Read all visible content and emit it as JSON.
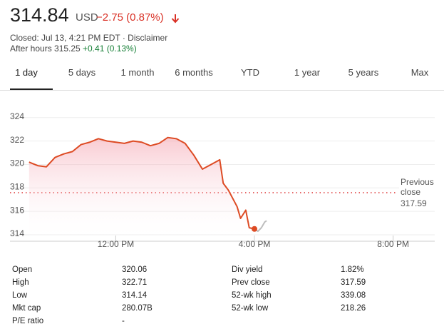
{
  "header": {
    "price": "314.84",
    "currency": "USD",
    "change": "−2.75 (0.87%)",
    "status": "Closed: Jul 13, 4:21 PM EDT · Disclaimer",
    "after_hours": "After hours 315.25",
    "after_hours_change": "+0.41 (0.13%)"
  },
  "tabs": {
    "items": [
      "1 day",
      "5 days",
      "1 month",
      "6 months",
      "YTD",
      "1 year",
      "5 years",
      "Max"
    ],
    "selected": 0
  },
  "chart_data": {
    "type": "line",
    "xlim": [
      8.95,
      21.2
    ],
    "ylim": [
      313.45,
      324.9
    ],
    "xticks": [
      {
        "value": 12,
        "label": "12:00 PM"
      },
      {
        "value": 16,
        "label": "4:00 PM"
      },
      {
        "value": 20,
        "label": "8:00 PM"
      }
    ],
    "yticks": [
      314,
      316,
      318,
      320,
      322,
      324
    ],
    "grid": true,
    "series": [
      {
        "color": "#dd4b24",
        "x": [
          9.5,
          9.75,
          10,
          10.25,
          10.5,
          10.75,
          11,
          11.25,
          11.5,
          11.75,
          12,
          12.25,
          12.5,
          12.75,
          13,
          13.25,
          13.5,
          13.75,
          14,
          14.25,
          14.5,
          14.75,
          15,
          15.1,
          15.25,
          15.5,
          15.6,
          15.75,
          15.85,
          16
        ],
        "values": [
          320.2,
          319.9,
          319.8,
          320.6,
          320.9,
          321.1,
          321.7,
          321.9,
          322.2,
          322.0,
          321.9,
          321.8,
          322.0,
          321.9,
          321.6,
          321.8,
          322.3,
          322.2,
          321.8,
          320.8,
          319.6,
          320.0,
          320.4,
          318.4,
          317.8,
          316.4,
          315.4,
          316.1,
          314.6,
          314.5
        ]
      },
      {
        "color": "#bdbdbd",
        "x": [
          16,
          16.1,
          16.2,
          16.3,
          16.35
        ],
        "values": [
          314.5,
          314.3,
          314.6,
          315.1,
          315.2
        ]
      }
    ],
    "reference": {
      "label": "Previous close",
      "value": 317.59
    }
  },
  "stats": {
    "rows": [
      [
        "Open",
        "320.06",
        "Div yield",
        "1.82%"
      ],
      [
        "High",
        "322.71",
        "Prev close",
        "317.59"
      ],
      [
        "Low",
        "314.14",
        "52-wk high",
        "339.08"
      ],
      [
        "Mkt cap",
        "280.07B",
        "52-wk low",
        "218.26"
      ],
      [
        "P/E ratio",
        "-",
        null,
        null
      ]
    ]
  }
}
